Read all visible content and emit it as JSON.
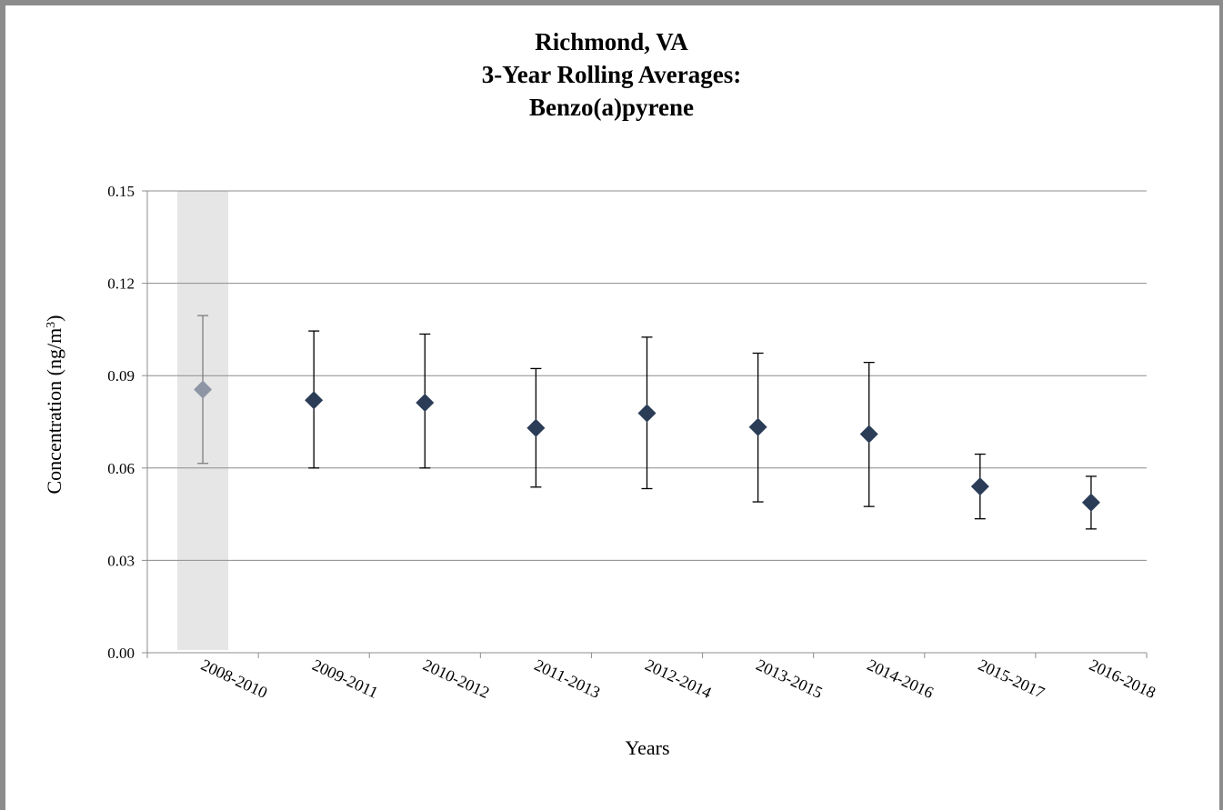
{
  "chart_data": {
    "type": "scatter",
    "title_lines": [
      "Richmond, VA",
      "3-Year Rolling Averages:",
      "Benzo(a)pyrene"
    ],
    "xlabel": "Years",
    "ylabel_main": "Concentration (ng/m",
    "ylabel_sup": "3",
    "ylabel_end": ")",
    "ylim": [
      0,
      0.15
    ],
    "yticks": [
      "0.00",
      "0.03",
      "0.06",
      "0.09",
      "0.12",
      "0.15"
    ],
    "ytick_values": [
      0,
      0.03,
      0.06,
      0.09,
      0.12,
      0.15
    ],
    "grid": true,
    "categories": [
      "2008-2010",
      "2009-2011",
      "2010-2012",
      "2011-2013",
      "2012-2014",
      "2013-2015",
      "2014-2016",
      "2015-2017",
      "2016-2018"
    ],
    "series": [
      {
        "values": [
          0.0855,
          0.082,
          0.0812,
          0.073,
          0.0778,
          0.0733,
          0.071,
          0.054,
          0.0488
        ],
        "error_low": [
          0.0615,
          0.06,
          0.06,
          0.0538,
          0.0533,
          0.049,
          0.0475,
          0.0435,
          0.0402
        ],
        "error_high": [
          0.1095,
          0.1045,
          0.1035,
          0.0923,
          0.1025,
          0.0973,
          0.0943,
          0.0645,
          0.0573
        ]
      }
    ],
    "highlighted_categories": [
      "2008-2010"
    ],
    "colors": {
      "marker": "#2b3c57",
      "highlight_marker": "#8e96a6",
      "highlight_band": "#e6e6e6",
      "error_bar": "#000000",
      "highlight_error_bar": "#7f7f7f",
      "gridline": "#8c8c8c"
    }
  }
}
